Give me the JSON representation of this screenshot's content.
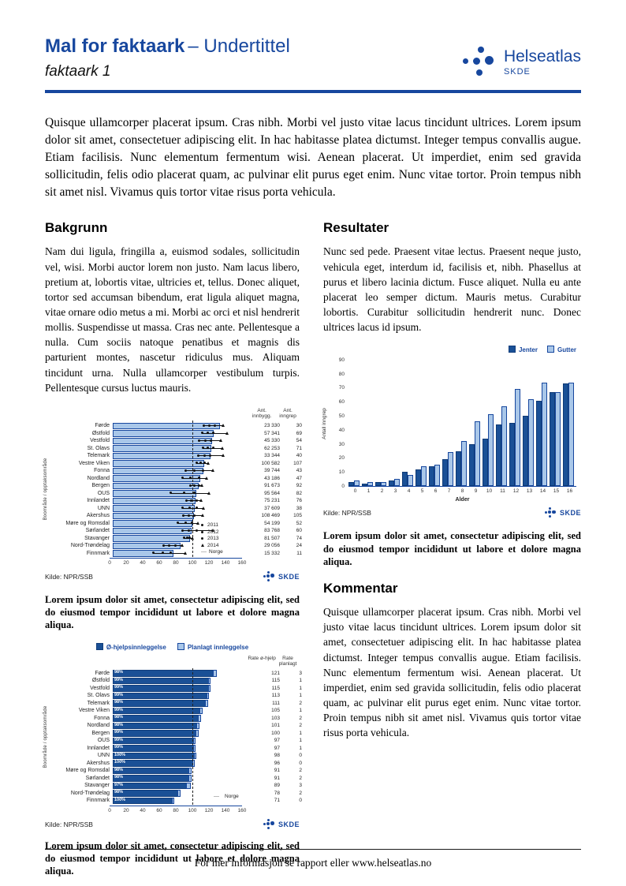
{
  "header": {
    "title_bold": "Mal for faktaark",
    "title_rest": "– Undertittel",
    "subtitle": "faktaark 1",
    "logo_name": "Helseatlas",
    "logo_sub": "SKDE"
  },
  "skde_mark": "SKDE",
  "colors": {
    "brand_blue": "#17479E",
    "bar_dark": "#1A5096",
    "bar_light": "#A9C7E9"
  },
  "intro": "Quisque ullamcorper placerat ipsum. Cras nibh. Morbi vel justo vitae lacus tincidunt ultrices. Lorem ipsum dolor sit amet, consectetuer adipiscing elit. In hac habitasse platea dictumst. Integer tempus convallis augue. Etiam facilisis. Nunc elementum fermentum wisi. Aenean placerat. Ut imperdiet, enim sed gravida sollicitudin, felis odio placerat quam, ac pulvinar elit purus eget enim. Nunc vitae tortor. Proin tempus nibh sit amet nisl. Vivamus quis tortor vitae risus porta vehicula.",
  "sections": {
    "bakgrunn": {
      "heading": "Bakgrunn",
      "body": "Nam dui ligula, fringilla a, euismod sodales, sollicitudin vel, wisi. Morbi auctor lorem non justo. Nam lacus libero, pretium at, lobortis vitae, ultricies et, tellus. Donec aliquet, tortor sed accumsan bibendum, erat ligula aliquet magna, vitae ornare odio metus a mi. Morbi ac orci et nisl hendrerit mollis. Suspendisse ut massa. Cras nec ante. Pellentesque a nulla. Cum sociis natoque penatibus et magnis dis parturient montes, nascetur ridiculus mus. Aliquam tincidunt urna. Nulla ullamcorper vestibulum turpis. Pellentesque cursus luctus mauris."
    },
    "resultater": {
      "heading": "Resultater",
      "body": "Nunc sed pede. Praesent vitae lectus. Praesent neque justo, vehicula eget, interdum id, facilisis et, nibh. Phasellus at purus et libero lacinia dictum. Fusce aliquet. Nulla eu ante placerat leo semper dictum. Mauris metus. Curabitur lobortis. Curabitur sollicitudin hendrerit nunc. Donec ultrices lacus id ipsum."
    },
    "kommentar": {
      "heading": "Kommentar",
      "body": "Quisque ullamcorper placerat ipsum. Cras nibh. Morbi vel justo vitae lacus tincidunt ultrices. Lorem ipsum dolor sit amet, consectetuer adipiscing elit. In hac habitasse platea dictumst. Integer tempus convallis augue. Etiam facilisis. Nunc elementum fermentum wisi. Aenean placerat. Ut imperdiet, enim sed gravida sollicitudin, felis odio placerat quam, ac pulvinar elit purus eget enim. Nunc vitae tortor. Proin tempus nibh sit amet nisl. Vivamus quis tortor vitae risus porta vehicula."
    }
  },
  "captions": {
    "chart1": "Lorem ipsum dolor sit amet, consectetur adipiscing elit, sed do eiusmod tempor incididunt ut labore et dolore magna aliqua.",
    "chart2": "Lorem ipsum dolor sit amet, consectetur adipiscing elit, sed do eiusmod tempor incididunt ut labore et dolore magna aliqua.",
    "chart3": "Lorem ipsum dolor sit amet, consectetur adipiscing elit, sed do eiusmod tempor incididunt ut labore et dolore magna aliqua."
  },
  "footer": {
    "text": "For mer informasjon se rapport eller www.helseatlas.no"
  },
  "chart_data": [
    {
      "type": "bar",
      "orientation": "horizontal",
      "ylabel": "Boområde / opptaksområde",
      "xlim": [
        0,
        160
      ],
      "xticks": [
        0,
        20,
        40,
        60,
        80,
        100,
        120,
        140,
        160
      ],
      "reference_line": {
        "value": 100,
        "label": "Norge",
        "style": "dashed"
      },
      "legend_years": [
        "2011",
        "2012",
        "2013",
        "2014"
      ],
      "col_headers": [
        "Ant. innbygg.",
        "Ant. inngrep"
      ],
      "source": "Kilde: NPR/SSB",
      "rows": [
        {
          "label": "Førde",
          "value": 128,
          "points": [
            110,
            117,
            123,
            134
          ],
          "innbygg": "23 330",
          "inngrep": "30"
        },
        {
          "label": "Østfold",
          "value": 120,
          "points": [
            108,
            115,
            121,
            139
          ],
          "innbygg": "57 341",
          "inngrep": "69"
        },
        {
          "label": "Vestfold",
          "value": 118,
          "points": [
            104,
            112,
            119,
            131
          ],
          "innbygg": "45 330",
          "inngrep": "54"
        },
        {
          "label": "St. Olavs",
          "value": 117,
          "points": [
            109,
            115,
            121,
            133
          ],
          "innbygg": "62 253",
          "inngrep": "71"
        },
        {
          "label": "Telemark",
          "value": 116,
          "points": [
            103,
            111,
            118,
            134
          ],
          "innbygg": "33 344",
          "inngrep": "40"
        },
        {
          "label": "Vestre Viken",
          "value": 109,
          "points": [
            101,
            106,
            111,
            116
          ],
          "innbygg": "100 582",
          "inngrep": "107"
        },
        {
          "label": "Fonna",
          "value": 108,
          "points": [
            88,
            99,
            109,
            121
          ],
          "innbygg": "39 744",
          "inngrep": "43"
        },
        {
          "label": "Nordland",
          "value": 104,
          "points": [
            84,
            94,
            104,
            114
          ],
          "innbygg": "43 186",
          "inngrep": "47"
        },
        {
          "label": "Bergen",
          "value": 102,
          "points": [
            94,
            99,
            104,
            108
          ],
          "innbygg": "91 673",
          "inngrep": "92"
        },
        {
          "label": "OUS",
          "value": 99,
          "points": [
            70,
            86,
            99,
            117
          ],
          "innbygg": "95 564",
          "inngrep": "82"
        },
        {
          "label": "Innlandet",
          "value": 98,
          "points": [
            89,
            95,
            101,
            107
          ],
          "innbygg": "75 231",
          "inngrep": "76"
        },
        {
          "label": "UNN",
          "value": 97,
          "points": [
            84,
            93,
            101,
            110
          ],
          "innbygg": "37 609",
          "inngrep": "38"
        },
        {
          "label": "Akershus",
          "value": 96,
          "points": [
            85,
            92,
            99,
            109
          ],
          "innbygg": "108 469",
          "inngrep": "105"
        },
        {
          "label": "Møre og Romsdal",
          "value": 94,
          "points": [
            79,
            88,
            96,
            103
          ],
          "innbygg": "54 199",
          "inngrep": "52"
        },
        {
          "label": "Sørlandet",
          "value": 93,
          "points": [
            84,
            92,
            101,
            121
          ],
          "innbygg": "83 768",
          "inngrep": "60"
        },
        {
          "label": "Stavanger",
          "value": 91,
          "points": [
            86,
            90,
            93,
            97
          ],
          "innbygg": "81 507",
          "inngrep": "74"
        },
        {
          "label": "Nord-Trøndelag",
          "value": 80,
          "points": [
            61,
            68,
            76,
            84
          ],
          "innbygg": "29 056",
          "inngrep": "24"
        },
        {
          "label": "Finnmark",
          "value": 71,
          "points": [
            49,
            60,
            70,
            88
          ],
          "innbygg": "15 332",
          "inngrep": "11"
        }
      ]
    },
    {
      "type": "bar",
      "orientation": "vertical-grouped",
      "xlabel": "Alder",
      "ylabel": "Antall inngrep",
      "ylim": [
        0,
        90
      ],
      "yticks": [
        0,
        10,
        20,
        30,
        40,
        50,
        60,
        70,
        80,
        90
      ],
      "categories": [
        "0",
        "1",
        "2",
        "3",
        "4",
        "5",
        "6",
        "7",
        "8",
        "9",
        "10",
        "11",
        "12",
        "13",
        "14",
        "15",
        "16"
      ],
      "series": [
        {
          "name": "Jenter",
          "values": [
            2,
            1,
            2,
            3,
            9,
            11,
            13,
            18,
            24,
            29,
            33,
            43,
            44,
            49,
            60,
            66,
            72
          ]
        },
        {
          "name": "Gutter",
          "values": [
            3,
            2,
            2,
            4,
            7,
            13,
            14,
            23,
            31,
            45,
            50,
            56,
            68,
            61,
            73,
            66,
            73
          ]
        }
      ],
      "source": "Kilde: NPR/SSB"
    },
    {
      "type": "bar",
      "orientation": "horizontal-stacked",
      "ylabel": "Boområde / opptaksområde",
      "xlim": [
        0,
        160
      ],
      "xticks": [
        0,
        20,
        40,
        60,
        80,
        100,
        120,
        140,
        160
      ],
      "reference_line": {
        "value": 100,
        "label": "Norge",
        "style": "dashed"
      },
      "legend": [
        "Ø-hjelpsinnleggelse",
        "Planlagt innleggelse"
      ],
      "col_headers": [
        "Rate ø-hjelp",
        "Rate planlagt"
      ],
      "source": "Kilde: NPR/SSB",
      "rows": [
        {
          "label": "Førde",
          "ohjelp": 121,
          "planlagt": 3,
          "pct": "98%"
        },
        {
          "label": "Østfold",
          "ohjelp": 115,
          "planlagt": 1,
          "pct": "99%"
        },
        {
          "label": "Vestfold",
          "ohjelp": 115,
          "planlagt": 1,
          "pct": "99%"
        },
        {
          "label": "St. Olavs",
          "ohjelp": 113,
          "planlagt": 1,
          "pct": "99%"
        },
        {
          "label": "Telemark",
          "ohjelp": 111,
          "planlagt": 2,
          "pct": "98%"
        },
        {
          "label": "Vestre Viken",
          "ohjelp": 105,
          "planlagt": 1,
          "pct": "99%"
        },
        {
          "label": "Fonna",
          "ohjelp": 103,
          "planlagt": 2,
          "pct": "98%"
        },
        {
          "label": "Nordland",
          "ohjelp": 101,
          "planlagt": 2,
          "pct": "98%"
        },
        {
          "label": "Bergen",
          "ohjelp": 100,
          "planlagt": 1,
          "pct": "99%"
        },
        {
          "label": "OUS",
          "ohjelp": 97,
          "planlagt": 1,
          "pct": "99%"
        },
        {
          "label": "Innlandet",
          "ohjelp": 97,
          "planlagt": 1,
          "pct": "99%"
        },
        {
          "label": "UNN",
          "ohjelp": 98,
          "planlagt": 0,
          "pct": "100%"
        },
        {
          "label": "Akershus",
          "ohjelp": 96,
          "planlagt": 0,
          "pct": "100%"
        },
        {
          "label": "Møre og Romsdal",
          "ohjelp": 91,
          "planlagt": 2,
          "pct": "98%"
        },
        {
          "label": "Sørlandet",
          "ohjelp": 91,
          "planlagt": 2,
          "pct": "98%"
        },
        {
          "label": "Stavanger",
          "ohjelp": 89,
          "planlagt": 3,
          "pct": "97%"
        },
        {
          "label": "Nord-Trøndelag",
          "ohjelp": 78,
          "planlagt": 2,
          "pct": "98%"
        },
        {
          "label": "Finnmark",
          "ohjelp": 71,
          "planlagt": 0,
          "pct": "100%"
        }
      ]
    }
  ]
}
